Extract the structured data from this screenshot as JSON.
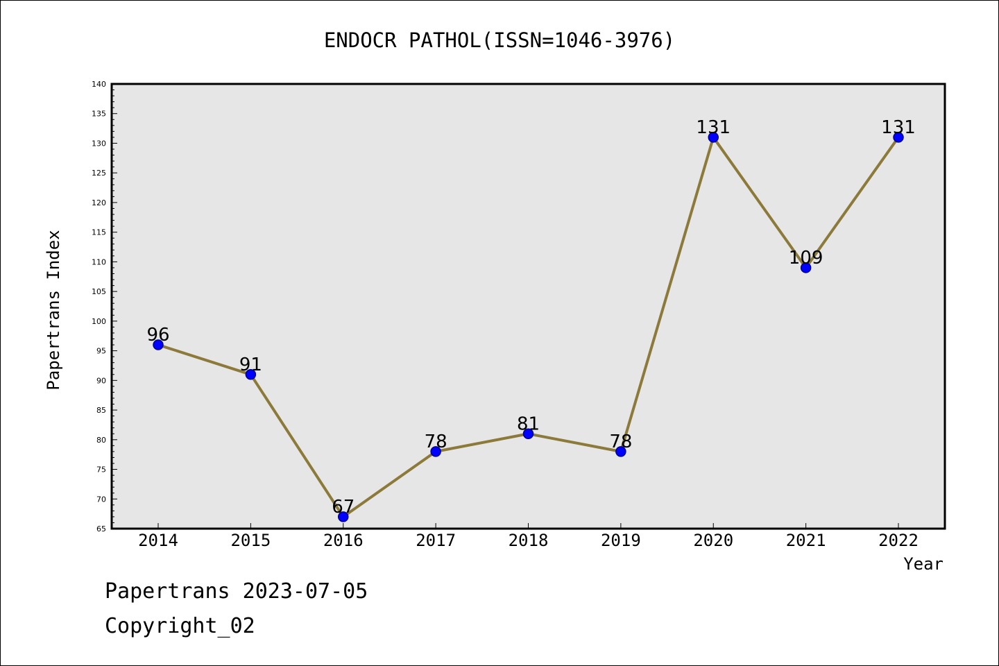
{
  "chart_data": {
    "type": "line",
    "title": "ENDOCR PATHOL(ISSN=1046-3976)",
    "xlabel": "Year",
    "ylabel": "Papertrans Index",
    "categories": [
      "2014",
      "2015",
      "2016",
      "2017",
      "2018",
      "2019",
      "2020",
      "2021",
      "2022"
    ],
    "series": [
      {
        "values": [
          96,
          91,
          67,
          78,
          81,
          78,
          131,
          109,
          131
        ]
      }
    ],
    "data_labels": [
      "96",
      "91",
      "67",
      "78",
      "81",
      "78",
      "131",
      "109",
      "131"
    ],
    "ylim": [
      65,
      140
    ],
    "y_ticks": [
      "65",
      "70",
      "75",
      "80",
      "85",
      "90",
      "95",
      "100",
      "105",
      "110",
      "115",
      "120",
      "125",
      "130",
      "135",
      "140"
    ],
    "grid": false,
    "legend": "none",
    "colors": {
      "plot_background": "#e6e6e6",
      "line": "#8c7a3a",
      "marker_fill": "#0000ff",
      "marker_edge": "#00008b",
      "axes": "#000000"
    }
  },
  "footer": {
    "date_line": "Papertrans 2023-07-05",
    "copyright": "Copyright_02"
  }
}
